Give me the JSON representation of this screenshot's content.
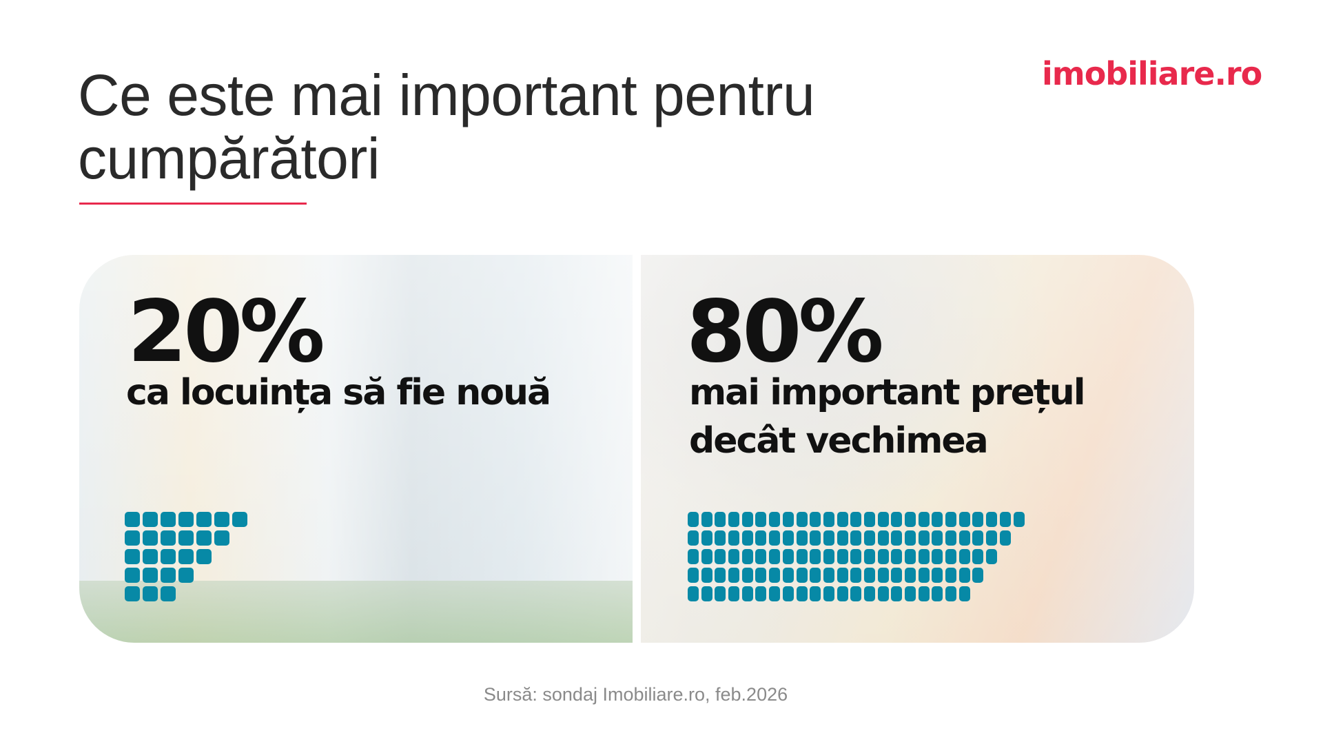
{
  "title": "Ce este mai important pentru cumpărători",
  "logo": "imobiliare.ro",
  "accent_color": "#e8294c",
  "square_color": "#0789a6",
  "left": {
    "value": "20%",
    "label": "ca locuința să fie nouă",
    "squares_per_row": [
      7,
      6,
      5,
      4,
      3
    ]
  },
  "right": {
    "value": "80%",
    "label_line1": "mai important prețul",
    "label_line2": "decât vechimea",
    "squares_per_row": [
      25,
      24,
      23,
      22,
      21
    ]
  },
  "source": "Sursă: sondaj Imobiliare.ro, feb.2026"
}
